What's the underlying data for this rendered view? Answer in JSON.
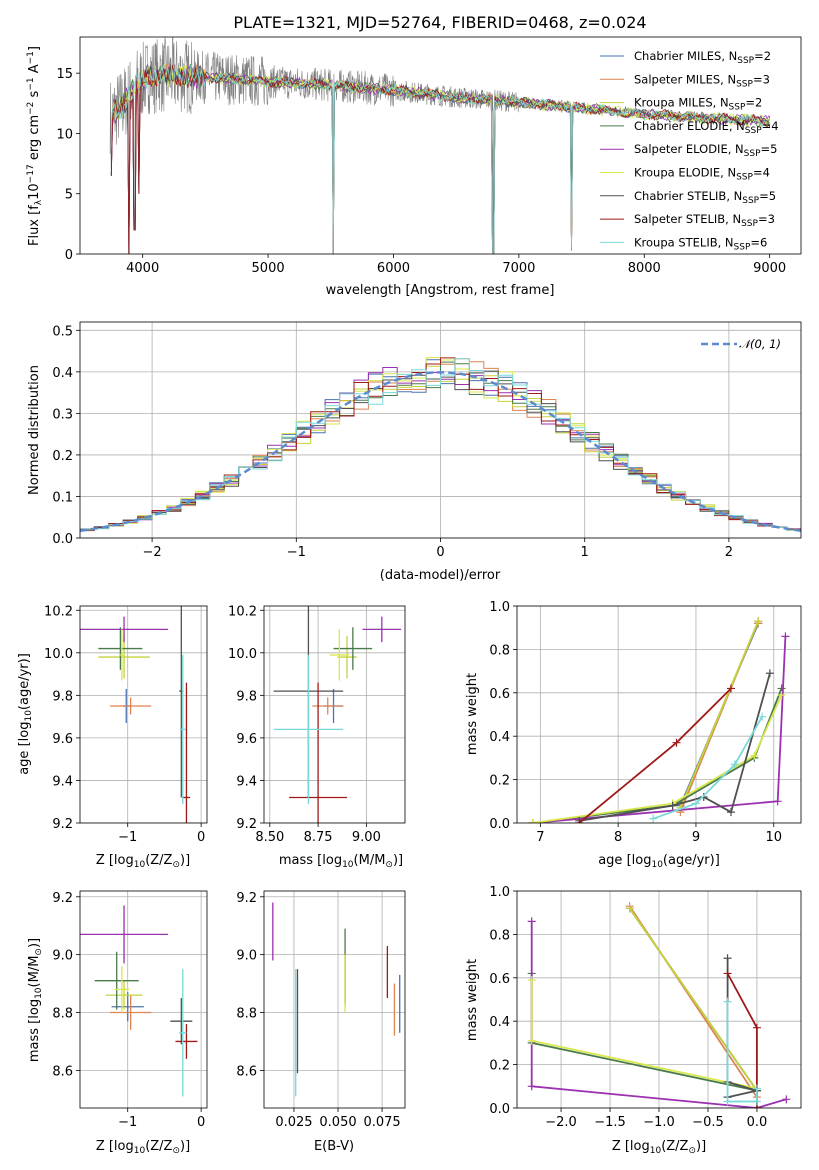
{
  "colors": {
    "Chabrier MILES": "#4c72b0",
    "Salpeter MILES": "#dd8452",
    "Kroupa MILES": "#c4d23c",
    "Chabrier ELODIE": "#4a7a4a",
    "Salpeter ELODIE": "#9b30b0",
    "Kroupa ELODIE": "#d8e84a",
    "Chabrier STELIB": "#505050",
    "Salpeter STELIB": "#a01818",
    "Kroupa STELIB": "#7ad8d8",
    "grid": "#b0b0b0",
    "normal_curve": "#5b8bd0",
    "data_gray": "#808080"
  },
  "chart_data": [
    {
      "id": "spectrum",
      "type": "line",
      "title": "PLATE=1321, MJD=52764, FIBERID=0468, z=0.024",
      "xlabel": "wavelength [Angstrom, rest frame]",
      "ylabel": "Flux [f",
      "ylabel_sub": "λ",
      "ylabel_mid": "10",
      "ylabel_sup1": "−17",
      "ylabel_end": " erg cm",
      "ylabel_sup2": "−2",
      "ylabel_end2": " s",
      "ylabel_sup3": "−1",
      "ylabel_end3": " A",
      "ylabel_sup4": "−1",
      "ylabel_close": "]",
      "xlim": [
        3500,
        9250
      ],
      "ylim": [
        0,
        18
      ],
      "xticks": [
        4000,
        5000,
        6000,
        7000,
        8000,
        9000
      ],
      "yticks": [
        0,
        5,
        10,
        15
      ],
      "grid": false,
      "legend_placement": "top-right",
      "legend": [
        {
          "name": "Chabrier MILES",
          "nssp": "2"
        },
        {
          "name": "Salpeter MILES",
          "nssp": "3"
        },
        {
          "name": "Kroupa MILES",
          "nssp": "2"
        },
        {
          "name": "Chabrier ELODIE",
          "nssp": "4"
        },
        {
          "name": "Salpeter ELODIE",
          "nssp": "5"
        },
        {
          "name": "Kroupa ELODIE",
          "nssp": "4"
        },
        {
          "name": "Chabrier STELIB",
          "nssp": "5"
        },
        {
          "name": "Salpeter STELIB",
          "nssp": "3"
        },
        {
          "name": "Kroupa STELIB",
          "nssp": "6"
        }
      ],
      "legend_prefix": "N",
      "legend_sub": "SSP",
      "continuum": [
        [
          3750,
          11.5
        ],
        [
          3850,
          12.5
        ],
        [
          3950,
          14.0
        ],
        [
          4050,
          14.8
        ],
        [
          4300,
          14.8
        ],
        [
          4600,
          14.6
        ],
        [
          5000,
          14.3
        ],
        [
          5500,
          14.0
        ],
        [
          6000,
          13.6
        ],
        [
          6500,
          13.0
        ],
        [
          7000,
          12.6
        ],
        [
          7500,
          12.1
        ],
        [
          8000,
          11.6
        ],
        [
          8500,
          11.3
        ],
        [
          9000,
          11.0
        ]
      ],
      "dips": [
        [
          3750,
          6.5
        ],
        [
          3890,
          0
        ],
        [
          3935,
          2.0
        ],
        [
          3970,
          5.0
        ],
        [
          5520,
          0
        ],
        [
          6795,
          0
        ],
        [
          7420,
          0.3
        ]
      ],
      "gaps": [
        [
          3740,
          3760,
          0.7
        ],
        [
          4850,
          4870,
          7.5
        ]
      ]
    },
    {
      "id": "residuals",
      "type": "line",
      "xlabel": "(data-model)/error",
      "ylabel": "Normed distribution",
      "xlim": [
        -2.5,
        2.5
      ],
      "ylim": [
        0,
        0.52
      ],
      "xticks": [
        -2,
        -1,
        0,
        1,
        2
      ],
      "xtick_labels": [
        "−2",
        "−1",
        "0",
        "1",
        "2"
      ],
      "yticks": [
        0.0,
        0.1,
        0.2,
        0.3,
        0.4,
        0.5
      ],
      "ytick_labels": [
        "0.0",
        "0.1",
        "0.2",
        "0.3",
        "0.4",
        "0.5"
      ],
      "grid": true,
      "legend_placement": "top-right",
      "legend": [
        {
          "name": "𝒩(0, 1)"
        }
      ],
      "hist_bin_width": 0.1
    },
    {
      "id": "age_vs_Z",
      "type": "scatter",
      "xlabel": "Z [log",
      "xlabel_sub": "10",
      "xlabel_mid": "(Z/Z",
      "xlabel_sun_sub": "⊙",
      "xlabel_end": ")]",
      "ylabel": "age  [log",
      "ylabel_sub": "10",
      "ylabel_end": "(age/yr)]",
      "xlim": [
        -1.65,
        0.08
      ],
      "ylim": [
        9.2,
        10.22
      ],
      "xticks": [
        -1,
        0
      ],
      "xtick_labels": [
        "−1",
        "0"
      ],
      "yticks": [
        9.2,
        9.4,
        9.6,
        9.8,
        10.0,
        10.2
      ],
      "ytick_labels": [
        "9.2",
        "9.4",
        "9.6",
        "9.8",
        "10.0",
        "10.2"
      ],
      "grid": true,
      "points": [
        {
          "model": "Chabrier MILES",
          "x": -1.02,
          "xerr": 0.05,
          "y": 9.75,
          "yerr": 0.08
        },
        {
          "model": "Salpeter MILES",
          "x": -0.96,
          "xerr": 0.28,
          "y": 9.75,
          "yerr": 0.04
        },
        {
          "model": "Kroupa MILES",
          "x": -1.05,
          "xerr": 0.35,
          "y": 9.98,
          "yerr": 0.1
        },
        {
          "model": "Chabrier ELODIE",
          "x": -1.1,
          "xerr": 0.3,
          "y": 10.02,
          "yerr": 0.1
        },
        {
          "model": "Salpeter ELODIE",
          "x": -1.05,
          "xerr": 0.6,
          "y": 10.11,
          "yerr": 0.06
        },
        {
          "model": "Kroupa ELODIE",
          "x": -1.08,
          "xerr": 0.04,
          "y": 9.99,
          "yerr": 0.12
        },
        {
          "model": "Chabrier STELIB",
          "x": -0.27,
          "xerr": 0.03,
          "y": 9.82,
          "yerr": 0.5
        },
        {
          "model": "Salpeter STELIB",
          "x": -0.2,
          "xerr": 0.05,
          "y": 9.32,
          "yerr": 0.54
        },
        {
          "model": "Kroupa STELIB",
          "x": -0.25,
          "xerr": 0.04,
          "y": 9.64,
          "yerr": 0.35
        }
      ]
    },
    {
      "id": "age_vs_mass",
      "type": "scatter",
      "xlabel": "mass [log",
      "xlabel_sub": "10",
      "xlabel_mid": "(M/M",
      "xlabel_sun_sub": "⊙",
      "xlabel_end": ")]",
      "xlim": [
        8.47,
        9.2
      ],
      "ylim": [
        9.2,
        10.22
      ],
      "xticks": [
        8.5,
        8.75,
        9.0
      ],
      "xtick_labels": [
        "8.50",
        "8.75",
        "9.00"
      ],
      "yticks": [
        9.2,
        9.4,
        9.6,
        9.8,
        10.0,
        10.2
      ],
      "ytick_labels": [
        "9.2",
        "9.4",
        "9.6",
        "9.8",
        "10.0",
        "10.2"
      ],
      "grid": true,
      "points": [
        {
          "model": "Chabrier MILES",
          "x": 8.83,
          "xerr": 0.05,
          "y": 9.75,
          "yerr": 0.08
        },
        {
          "model": "Salpeter MILES",
          "x": 8.8,
          "xerr": 0.08,
          "y": 9.75,
          "yerr": 0.04
        },
        {
          "model": "Kroupa MILES",
          "x": 8.9,
          "xerr": 0.05,
          "y": 9.98,
          "yerr": 0.1
        },
        {
          "model": "Chabrier ELODIE",
          "x": 8.93,
          "xerr": 0.1,
          "y": 10.02,
          "yerr": 0.1
        },
        {
          "model": "Salpeter ELODIE",
          "x": 9.08,
          "xerr": 0.1,
          "y": 10.11,
          "yerr": 0.06
        },
        {
          "model": "Kroupa ELODIE",
          "x": 8.86,
          "xerr": 0.05,
          "y": 9.99,
          "yerr": 0.12
        },
        {
          "model": "Chabrier STELIB",
          "x": 8.7,
          "xerr": 0.18,
          "y": 9.82,
          "yerr": 0.5
        },
        {
          "model": "Salpeter STELIB",
          "x": 8.75,
          "xerr": 0.15,
          "y": 9.32,
          "yerr": 0.54
        },
        {
          "model": "Kroupa STELIB",
          "x": 8.7,
          "xerr": 0.18,
          "y": 9.64,
          "yerr": 0.35
        }
      ]
    },
    {
      "id": "mass_weight_vs_age",
      "type": "line",
      "xlabel": "age  [log",
      "xlabel_sub": "10",
      "xlabel_end": "(age/yr)]",
      "ylabel": "mass weight",
      "xlim": [
        6.7,
        10.35
      ],
      "ylim": [
        0,
        1.0
      ],
      "xticks": [
        7,
        8,
        9,
        10
      ],
      "xtick_labels": [
        "7",
        "8",
        "9",
        "10"
      ],
      "yticks": [
        0.0,
        0.2,
        0.4,
        0.6,
        0.8,
        1.0
      ],
      "ytick_labels": [
        "0.0",
        "0.2",
        "0.4",
        "0.6",
        "0.8",
        "1.0"
      ],
      "grid": true,
      "series": [
        {
          "model": "Chabrier MILES",
          "x": [
            8.8,
            9.8
          ],
          "y": [
            0.08,
            0.92
          ]
        },
        {
          "model": "Salpeter MILES",
          "x": [
            8.8,
            9.8,
            9.8
          ],
          "y": [
            0.05,
            0.93,
            0.92
          ]
        },
        {
          "model": "Kroupa MILES",
          "x": [
            8.8,
            9.8
          ],
          "y": [
            0.07,
            0.93
          ]
        },
        {
          "model": "Chabrier ELODIE",
          "x": [
            6.9,
            8.7,
            9.75,
            10.1
          ],
          "y": [
            0.0,
            0.08,
            0.3,
            0.62
          ]
        },
        {
          "model": "Salpeter ELODIE",
          "x": [
            6.9,
            10.05,
            10.15
          ],
          "y": [
            0.0,
            0.1,
            0.86
          ]
        },
        {
          "model": "Kroupa ELODIE",
          "x": [
            6.9,
            8.7,
            9.75,
            10.1
          ],
          "y": [
            0.0,
            0.09,
            0.31,
            0.59
          ]
        },
        {
          "model": "Chabrier STELIB",
          "x": [
            7.5,
            8.7,
            9.1,
            9.45,
            9.95
          ],
          "y": [
            0.01,
            0.08,
            0.12,
            0.05,
            0.69
          ]
        },
        {
          "model": "Salpeter STELIB",
          "x": [
            7.5,
            8.75,
            9.45
          ],
          "y": [
            0.0,
            0.37,
            0.62
          ]
        },
        {
          "model": "Kroupa STELIB",
          "x": [
            8.45,
            9.0,
            9.5,
            9.85
          ],
          "y": [
            0.02,
            0.09,
            0.27,
            0.49
          ]
        }
      ]
    },
    {
      "id": "mass_vs_Z",
      "type": "scatter",
      "xlabel": "Z [log",
      "xlabel_sub": "10",
      "xlabel_mid": "(Z/Z",
      "xlabel_sun_sub": "⊙",
      "xlabel_end": ")]",
      "ylabel": "mass [log",
      "ylabel_sub": "10",
      "ylabel_mid": "(M/M",
      "ylabel_sun_sub": "⊙",
      "ylabel_end": ")]",
      "xlim": [
        -1.65,
        0.08
      ],
      "ylim": [
        8.47,
        9.22
      ],
      "xticks": [
        -1,
        0
      ],
      "xtick_labels": [
        "−1",
        "0"
      ],
      "yticks": [
        8.6,
        8.8,
        9.0,
        9.2
      ],
      "ytick_labels": [
        "8.6",
        "8.8",
        "9.0",
        "9.2"
      ],
      "grid": true,
      "points": [
        {
          "model": "Chabrier MILES",
          "x": -1.0,
          "xerr": 0.22,
          "y": 8.82,
          "yerr": 0.05
        },
        {
          "model": "Salpeter MILES",
          "x": -0.96,
          "xerr": 0.28,
          "y": 8.8,
          "yerr": 0.06
        },
        {
          "model": "Kroupa MILES",
          "x": -1.05,
          "xerr": 0.25,
          "y": 8.86,
          "yerr": 0.05
        },
        {
          "model": "Chabrier ELODIE",
          "x": -1.15,
          "xerr": 0.3,
          "y": 8.91,
          "yerr": 0.1
        },
        {
          "model": "Salpeter ELODIE",
          "x": -1.05,
          "xerr": 0.6,
          "y": 9.07,
          "yerr": 0.1
        },
        {
          "model": "Kroupa ELODIE",
          "x": -1.08,
          "xerr": 0.1,
          "y": 8.88,
          "yerr": 0.08
        },
        {
          "model": "Chabrier STELIB",
          "x": -0.27,
          "xerr": 0.15,
          "y": 8.77,
          "yerr": 0.08
        },
        {
          "model": "Salpeter STELIB",
          "x": -0.2,
          "xerr": 0.15,
          "y": 8.7,
          "yerr": 0.06
        },
        {
          "model": "Kroupa STELIB",
          "x": -0.25,
          "xerr": 0.05,
          "y": 8.73,
          "yerr": 0.22
        }
      ]
    },
    {
      "id": "mass_vs_ebv",
      "type": "scatter",
      "xlabel": "E(B-V)",
      "xlim": [
        0.008,
        0.088
      ],
      "ylim": [
        8.47,
        9.22
      ],
      "xticks": [
        0.025,
        0.05,
        0.075
      ],
      "xtick_labels": [
        "0.025",
        "0.050",
        "0.075"
      ],
      "yticks": [
        8.6,
        8.8,
        9.0,
        9.2
      ],
      "ytick_labels": [
        "8.6",
        "8.8",
        "9.0",
        "9.2"
      ],
      "grid": true,
      "points": [
        {
          "model": "Chabrier MILES",
          "x": 0.085,
          "xerr": 0,
          "y": 8.83,
          "yerr": 0.1
        },
        {
          "model": "Salpeter MILES",
          "x": 0.082,
          "xerr": 0,
          "y": 8.81,
          "yerr": 0.09
        },
        {
          "model": "Kroupa MILES",
          "x": 0.054,
          "xerr": 0,
          "y": 8.91,
          "yerr": 0.09
        },
        {
          "model": "Chabrier ELODIE",
          "x": 0.054,
          "xerr": 0,
          "y": 8.96,
          "yerr": 0.13
        },
        {
          "model": "Salpeter ELODIE",
          "x": 0.013,
          "xerr": 0,
          "y": 9.08,
          "yerr": 0.1
        },
        {
          "model": "Kroupa ELODIE",
          "x": 0.054,
          "xerr": 0,
          "y": 8.9,
          "yerr": 0.1
        },
        {
          "model": "Chabrier STELIB",
          "x": 0.027,
          "xerr": 0,
          "y": 8.77,
          "yerr": 0.18
        },
        {
          "model": "Salpeter STELIB",
          "x": 0.078,
          "xerr": 0,
          "y": 8.94,
          "yerr": 0.09
        },
        {
          "model": "Kroupa STELIB",
          "x": 0.026,
          "xerr": 0,
          "y": 8.73,
          "yerr": 0.22
        }
      ]
    },
    {
      "id": "mass_weight_vs_Z",
      "type": "line",
      "xlabel": "Z [log",
      "xlabel_sub": "10",
      "xlabel_mid": "(Z/Z",
      "xlabel_sun_sub": "⊙",
      "xlabel_end": ")]",
      "ylabel": "mass weight",
      "xlim": [
        -2.45,
        0.45
      ],
      "ylim": [
        0,
        1.0
      ],
      "xticks": [
        -2.0,
        -1.5,
        -1.0,
        -0.5,
        0.0
      ],
      "xtick_labels": [
        "−2.0",
        "−1.5",
        "−1.0",
        "−0.5",
        "0.0"
      ],
      "yticks": [
        0.0,
        0.2,
        0.4,
        0.6,
        0.8,
        1.0
      ],
      "ytick_labels": [
        "0.0",
        "0.2",
        "0.4",
        "0.6",
        "0.8",
        "1.0"
      ],
      "grid": true,
      "series": [
        {
          "model": "Chabrier MILES",
          "x": [
            -1.3,
            0.0
          ],
          "y": [
            0.92,
            0.08
          ]
        },
        {
          "model": "Salpeter MILES",
          "x": [
            -1.3,
            0.0,
            0.0
          ],
          "y": [
            0.93,
            0.05,
            0.08
          ]
        },
        {
          "model": "Kroupa MILES",
          "x": [
            -1.3,
            0.0
          ],
          "y": [
            0.92,
            0.08
          ]
        },
        {
          "model": "Chabrier ELODIE",
          "x": [
            -2.3,
            -2.3,
            0.0
          ],
          "y": [
            0.62,
            0.3,
            0.08
          ]
        },
        {
          "model": "Salpeter ELODIE",
          "x": [
            -2.3,
            -2.3,
            0.0,
            0.3
          ],
          "y": [
            0.86,
            0.1,
            0.0,
            0.04
          ]
        },
        {
          "model": "Kroupa ELODIE",
          "x": [
            -2.3,
            -2.3,
            0.0
          ],
          "y": [
            0.59,
            0.31,
            0.09
          ]
        },
        {
          "model": "Chabrier STELIB",
          "x": [
            -0.3,
            -0.3,
            0.0,
            -0.3
          ],
          "y": [
            0.69,
            0.12,
            0.08,
            0.05
          ]
        },
        {
          "model": "Salpeter STELIB",
          "x": [
            -0.3,
            0.0,
            0.0
          ],
          "y": [
            0.62,
            0.37,
            0.0
          ]
        },
        {
          "model": "Kroupa STELIB",
          "x": [
            -0.3,
            -0.3,
            0.0,
            0.0
          ],
          "y": [
            0.49,
            0.03,
            0.03,
            0.09
          ]
        }
      ]
    }
  ]
}
